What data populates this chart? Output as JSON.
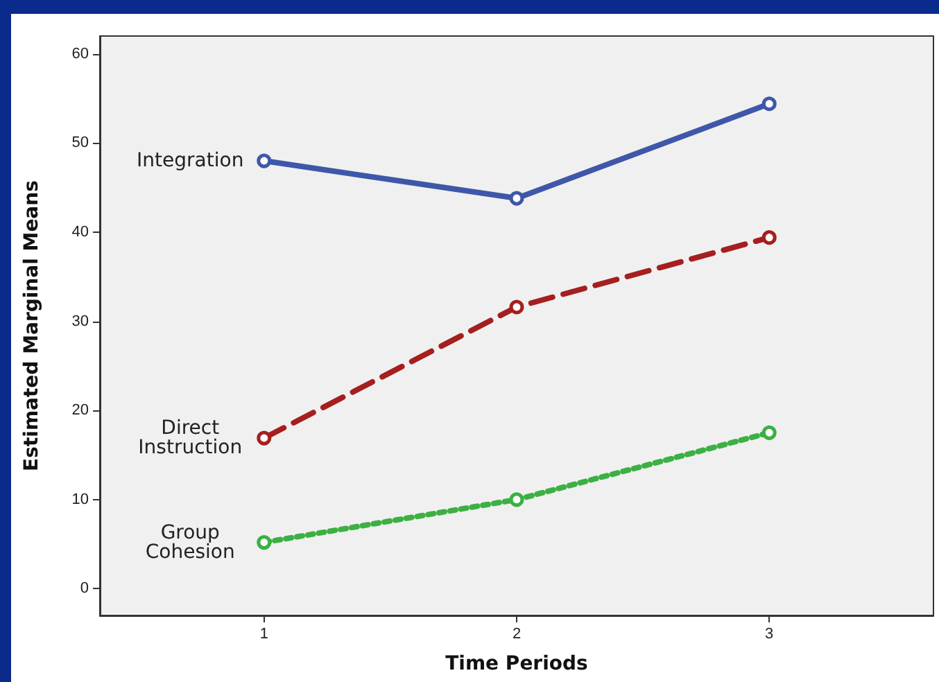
{
  "chart_data": {
    "type": "line",
    "xlabel": "Time Periods",
    "ylabel": "Estimated Marginal Means",
    "x": [
      1,
      2,
      3
    ],
    "xlim": [
      0.35,
      3.65
    ],
    "xticks": [
      1,
      2,
      3
    ],
    "ylim": [
      -3,
      62
    ],
    "yticks": [
      0,
      10,
      20,
      30,
      40,
      50,
      60
    ],
    "grid": false,
    "marker": "circle",
    "legend": false,
    "series": [
      {
        "name": "Integration",
        "color": "#3f57a8",
        "line_style": "solid",
        "values": [
          48.0,
          43.8,
          54.4
        ]
      },
      {
        "name": "Direct\nInstruction",
        "color": "#a51f1f",
        "line_style": "dashed",
        "values": [
          16.9,
          31.6,
          39.4
        ]
      },
      {
        "name": "Group\nCohesion",
        "color": "#3cb043",
        "line_style": "dotted",
        "values": [
          5.2,
          10.0,
          17.5
        ]
      }
    ]
  }
}
